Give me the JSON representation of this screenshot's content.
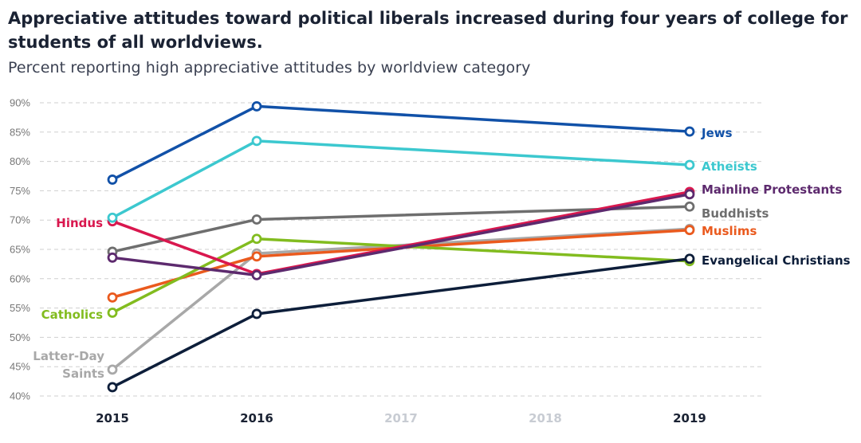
{
  "chart_data": {
    "type": "line",
    "title": "Appreciative attitudes toward political liberals increased during four years of college for students of all worldviews.",
    "subtitle": "Percent reporting high appreciative attitudes by worldview category",
    "xlabel": "",
    "ylabel": "",
    "ylim": [
      40,
      90
    ],
    "grid": true,
    "x": [
      "2015",
      "2016",
      "2017",
      "2018",
      "2019"
    ],
    "x_active": [
      true,
      true,
      false,
      false,
      true
    ],
    "yticks": [
      90,
      85,
      80,
      75,
      70,
      65,
      60,
      55,
      50,
      45,
      40
    ],
    "ytick_labels": [
      "90%",
      "85%",
      "80%",
      "75%",
      "70%",
      "65%",
      "60%",
      "55%",
      "50%",
      "45%",
      "40%"
    ],
    "colors": {
      "tick_active": "#1a2233",
      "tick_muted": "#c8ccd3",
      "grid": "#cfcfcf"
    },
    "series": [
      {
        "name": "Latter-Day Saints",
        "label_lines": [
          "Latter-Day",
          "Saints"
        ],
        "label_side": "left",
        "color": "#a8a8a8",
        "points": [
          [
            2015,
            44.5
          ],
          [
            2016,
            64.3
          ],
          [
            2019,
            68.5
          ]
        ]
      },
      {
        "name": "Buddhists",
        "label_lines": [
          "Buddhists"
        ],
        "label_side": "right",
        "color": "#6e6e6e",
        "points": [
          [
            2015,
            64.6
          ],
          [
            2016,
            70.1
          ],
          [
            2019,
            72.3
          ]
        ]
      },
      {
        "name": "Muslims",
        "label_lines": [
          "Muslims"
        ],
        "label_side": "right",
        "color": "#ea5a1e",
        "points": [
          [
            2015,
            56.8
          ],
          [
            2016,
            63.8
          ],
          [
            2019,
            68.3
          ]
        ]
      },
      {
        "name": "Catholics",
        "label_lines": [
          "Catholics"
        ],
        "label_side": "left",
        "color": "#82bc1f",
        "points": [
          [
            2015,
            54.2
          ],
          [
            2016,
            66.8
          ],
          [
            2019,
            63.0
          ]
        ]
      },
      {
        "name": "Hindus",
        "label_lines": [
          "Hindus"
        ],
        "label_side": "left",
        "color": "#d9174e",
        "points": [
          [
            2015,
            69.8
          ],
          [
            2016,
            60.8
          ],
          [
            2019,
            74.8
          ]
        ]
      },
      {
        "name": "Mainline Protestants",
        "label_lines": [
          "Mainline Protestants"
        ],
        "label_side": "right",
        "color": "#5d2a6e",
        "points": [
          [
            2015,
            63.6
          ],
          [
            2016,
            60.6
          ],
          [
            2019,
            74.4
          ]
        ]
      },
      {
        "name": "Atheists",
        "label_lines": [
          "Atheists"
        ],
        "label_side": "right",
        "color": "#3cc8cf",
        "points": [
          [
            2015,
            70.4
          ],
          [
            2016,
            83.5
          ],
          [
            2019,
            79.4
          ]
        ]
      },
      {
        "name": "Jews",
        "label_lines": [
          "Jews"
        ],
        "label_side": "right",
        "color": "#1151a8",
        "points": [
          [
            2015,
            76.9
          ],
          [
            2016,
            89.4
          ],
          [
            2019,
            85.1
          ]
        ]
      },
      {
        "name": "Evangelical Christians",
        "label_lines": [
          "Evangelical Christians"
        ],
        "label_side": "right",
        "color": "#0d1e3a",
        "points": [
          [
            2015,
            41.5
          ],
          [
            2016,
            54.0
          ],
          [
            2019,
            63.4
          ]
        ]
      }
    ]
  }
}
